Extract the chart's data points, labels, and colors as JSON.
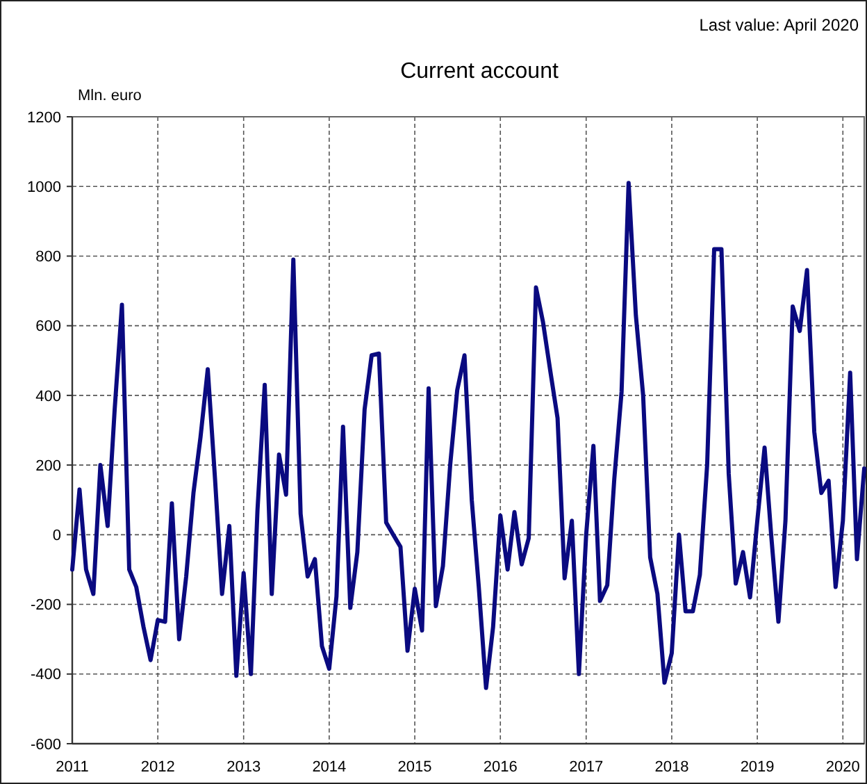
{
  "chart_data": {
    "type": "line",
    "title": "Current account",
    "ylabel": "Mln. euro",
    "annotations": [
      "Last value: April 2020"
    ],
    "x": [
      "2011-01",
      "2011-02",
      "2011-03",
      "2011-04",
      "2011-05",
      "2011-06",
      "2011-07",
      "2011-08",
      "2011-09",
      "2011-10",
      "2011-11",
      "2011-12",
      "2012-01",
      "2012-02",
      "2012-03",
      "2012-04",
      "2012-05",
      "2012-06",
      "2012-07",
      "2012-08",
      "2012-09",
      "2012-10",
      "2012-11",
      "2012-12",
      "2013-01",
      "2013-02",
      "2013-03",
      "2013-04",
      "2013-05",
      "2013-06",
      "2013-07",
      "2013-08",
      "2013-09",
      "2013-10",
      "2013-11",
      "2013-12",
      "2014-01",
      "2014-02",
      "2014-03",
      "2014-04",
      "2014-05",
      "2014-06",
      "2014-07",
      "2014-08",
      "2014-09",
      "2014-10",
      "2014-11",
      "2014-12",
      "2015-01",
      "2015-02",
      "2015-03",
      "2015-04",
      "2015-05",
      "2015-06",
      "2015-07",
      "2015-08",
      "2015-09",
      "2015-10",
      "2015-11",
      "2015-12",
      "2016-01",
      "2016-02",
      "2016-03",
      "2016-04",
      "2016-05",
      "2016-06",
      "2016-07",
      "2016-08",
      "2016-09",
      "2016-10",
      "2016-11",
      "2016-12",
      "2017-01",
      "2017-02",
      "2017-03",
      "2017-04",
      "2017-05",
      "2017-06",
      "2017-07",
      "2017-08",
      "2017-09",
      "2017-10",
      "2017-11",
      "2017-12",
      "2018-01",
      "2018-02",
      "2018-03",
      "2018-04",
      "2018-05",
      "2018-06",
      "2018-07",
      "2018-08",
      "2018-09",
      "2018-10",
      "2018-11",
      "2018-12",
      "2019-01",
      "2019-02",
      "2019-03",
      "2019-04",
      "2019-05",
      "2019-06",
      "2019-07",
      "2019-08",
      "2019-09",
      "2019-10",
      "2019-11",
      "2019-12",
      "2020-01",
      "2020-02",
      "2020-03",
      "2020-04"
    ],
    "series": [
      {
        "color": "#0a0a80",
        "values": [
          -100,
          130,
          -100,
          -170,
          200,
          25,
          360,
          660,
          -100,
          -150,
          -265,
          -360,
          -245,
          -250,
          90,
          -300,
          -120,
          120,
          280,
          475,
          160,
          -170,
          25,
          -405,
          -110,
          -400,
          70,
          430,
          -170,
          230,
          115,
          790,
          60,
          -120,
          -70,
          -320,
          -385,
          -177,
          310,
          -210,
          -50,
          360,
          515,
          520,
          35,
          0,
          -35,
          -333,
          -155,
          -275,
          420,
          -205,
          -90,
          200,
          415,
          515,
          100,
          -150,
          -440,
          -265,
          55,
          -100,
          65,
          -85,
          -10,
          710,
          610,
          470,
          335,
          -125,
          40,
          -400,
          0,
          255,
          -190,
          -145,
          160,
          410,
          1010,
          630,
          400,
          -65,
          -170,
          -425,
          -340,
          0,
          -220,
          -220,
          -115,
          200,
          820,
          820,
          175,
          -140,
          -50,
          -180,
          40,
          250,
          0,
          -250,
          40,
          655,
          585,
          760,
          295,
          120,
          155,
          -150,
          40,
          465,
          -70,
          190
        ]
      }
    ],
    "xlim": [
      "2011-01",
      "2020-04"
    ],
    "xticks": [
      {
        "value": "2011",
        "label": "2011"
      },
      {
        "value": "2012",
        "label": "2012"
      },
      {
        "value": "2013",
        "label": "2013"
      },
      {
        "value": "2014",
        "label": "2014"
      },
      {
        "value": "2015",
        "label": "2015"
      },
      {
        "value": "2016",
        "label": "2016"
      },
      {
        "value": "2017",
        "label": "2017"
      },
      {
        "value": "2018",
        "label": "2018"
      },
      {
        "value": "2019",
        "label": "2019"
      },
      {
        "value": "2020",
        "label": "2020"
      }
    ],
    "ylim": [
      -600,
      1200
    ],
    "yticks": [
      -600,
      -400,
      -200,
      0,
      200,
      400,
      600,
      800,
      1000,
      1200
    ],
    "grid": true,
    "marker": "none",
    "line_style": "solid"
  }
}
